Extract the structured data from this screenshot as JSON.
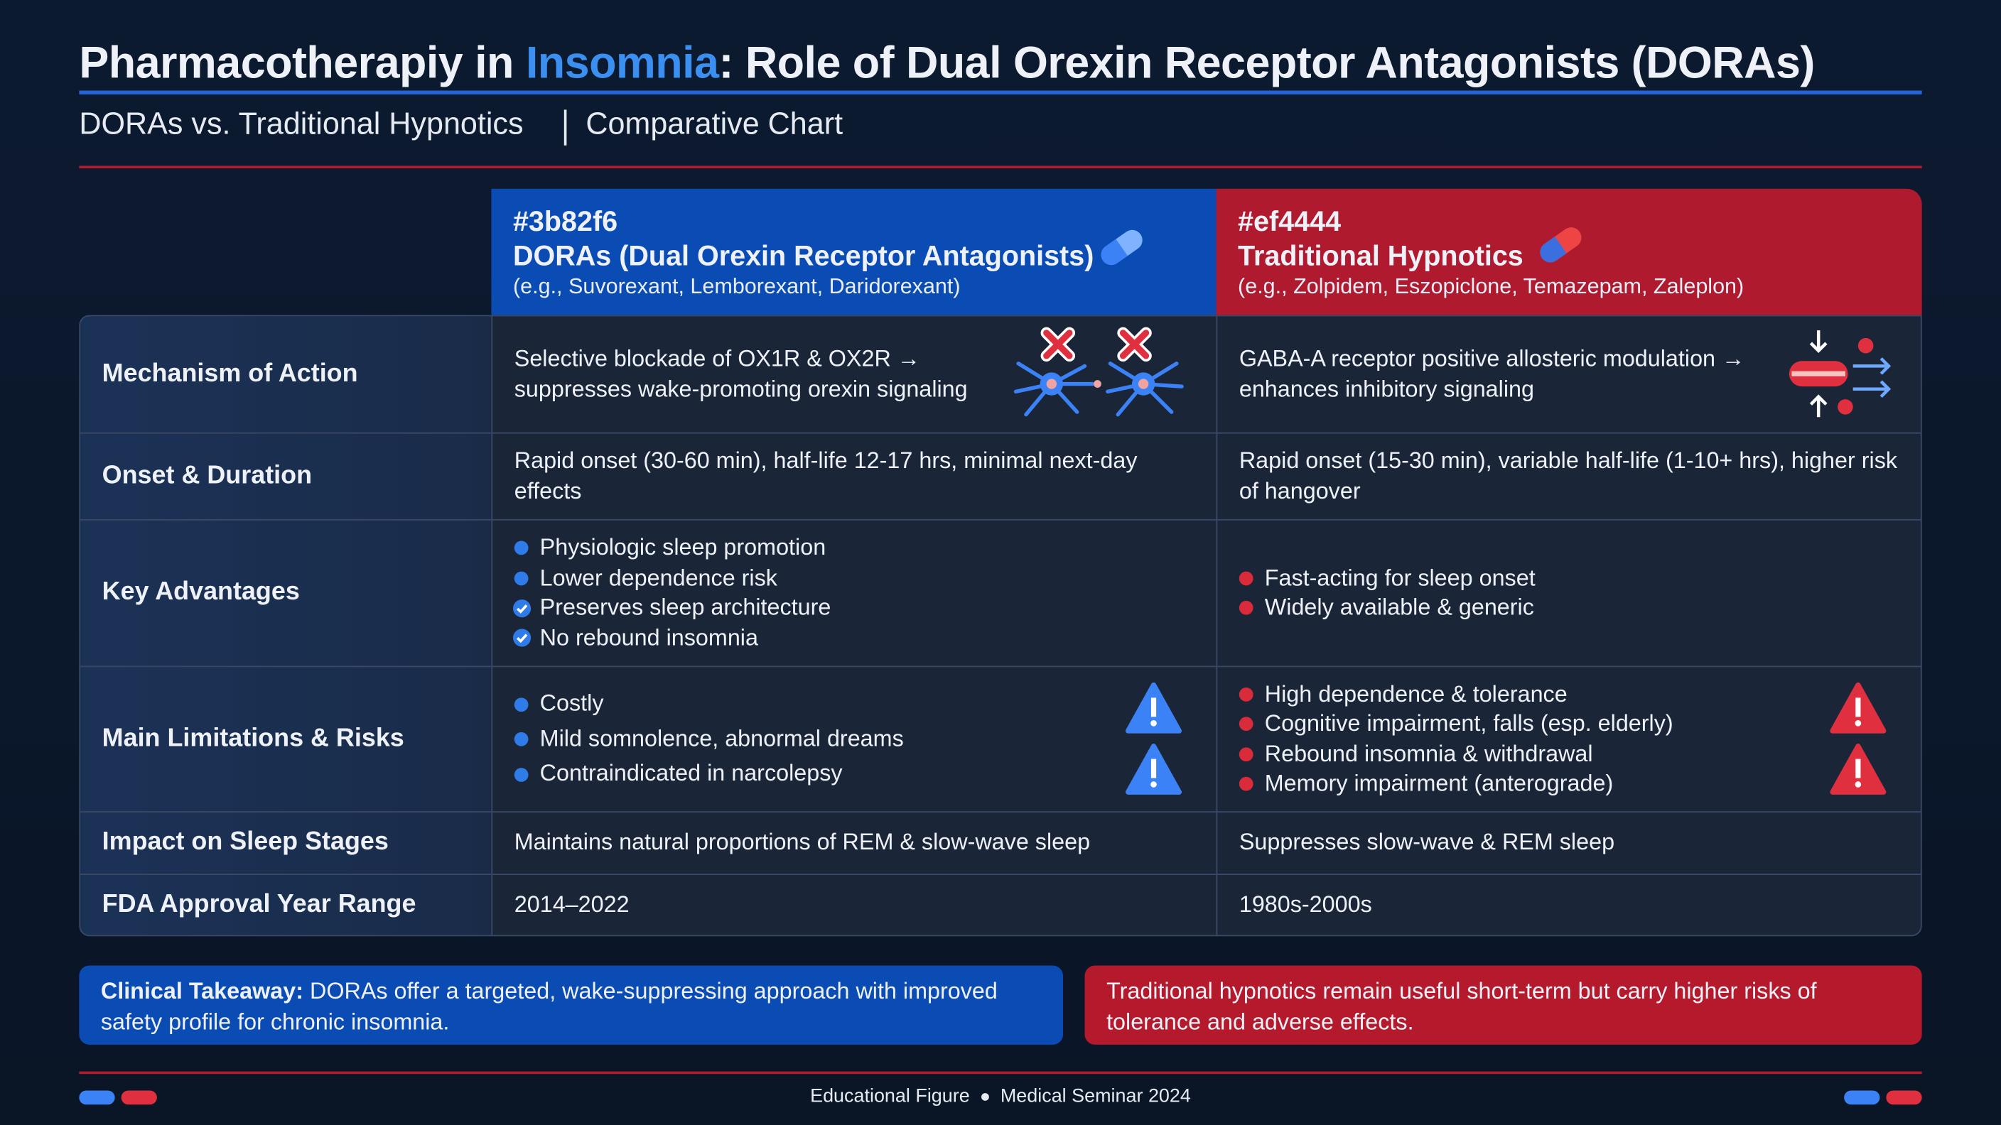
{
  "header": {
    "title": {
      "before": "Pharmacotherapiy in",
      "highlight": "Insomnia",
      "after": ": Role of Dual Orexin Receptor Antagonists (DORAs)"
    },
    "subtitle": [
      "DORAs vs. Traditional Hypnotics",
      "Comparative Chart"
    ]
  },
  "table": {
    "columns": [
      {
        "code": "#3b82f6",
        "name": "DORAs (Dual Orexin Receptor Antagonists)",
        "examples": "(e.g., Suvorexant, Lemborexant, Daridorexant)"
      },
      {
        "code": "#ef4444",
        "name": "Traditional Hypnotics",
        "examples": "(e.g., Zolpidem, Eszopiclone, Temazepam, Zaleplon)"
      }
    ],
    "rows": [
      {
        "label": "Mechanism of Action",
        "cells": [
          "Selective blockade of OX1R & OX2R → suppresses wake-promoting orexin signaling",
          "GABA-A receptor positive allosteric modulation → enhances inhibitory signaling"
        ]
      },
      {
        "label": "Onset & Duration",
        "cells": [
          "Rapid onset (30-60 min), half-life 12-17 hrs, minimal next-day effects",
          "Rapid onset (15-30 min), variable half-life (1-10+ hrs), higher risk of hangover"
        ]
      },
      {
        "label": "Key Advantages",
        "cells": [
          [
            "Physiologic sleep promotion",
            "Lower dependence risk",
            "Preserves sleep architecture",
            "No rebound insomnia"
          ],
          [
            "Fast-acting for sleep onset",
            "Widely available & generic"
          ]
        ]
      },
      {
        "label": "Main Limitations & Risks",
        "cells": [
          [
            "Costly",
            "Mild somnolence, abnormal dreams",
            "Contraindicated in narcolepsy"
          ],
          [
            "High dependence & tolerance",
            "Cognitive impairment, falls (esp. elderly)",
            "Rebound insomnia & withdrawal",
            "Memory impairment (anterograde)"
          ]
        ]
      },
      {
        "label": "Impact on Sleep Stages",
        "cells": [
          "Maintains natural proportions of REM & slow-wave sleep",
          "Suppresses slow-wave & REM sleep"
        ]
      },
      {
        "label": "FDA Approval Year Range",
        "cells": [
          "2014–2022",
          "1980s-2000s"
        ]
      }
    ]
  },
  "takeaways": [
    {
      "label": "Clinical Takeaway:",
      "text": "DORAs offer a targeted, wake-suppressing approach with improved safety profile for chronic insomnia."
    },
    {
      "text": "Traditional hypnotics remain useful short-term but carry higher risks of tolerance and adverse effects."
    }
  ],
  "footer": [
    "Educational Figure",
    "Medical Seminar 2024"
  ]
}
